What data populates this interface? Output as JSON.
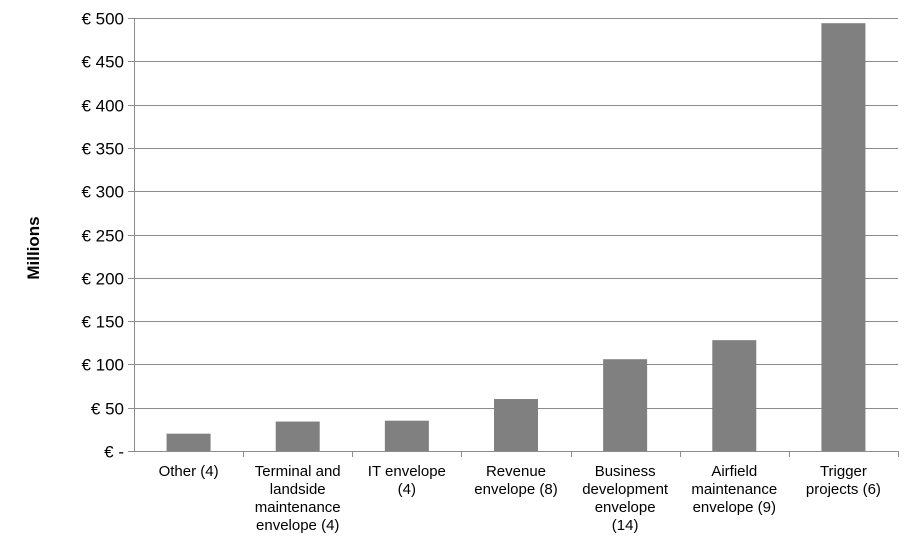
{
  "chart_data": {
    "type": "bar",
    "ylabel": "Millions",
    "ylim": [
      0,
      500
    ],
    "y_step": 50,
    "y_tick_labels": [
      "€ -",
      "€ 50",
      "€ 100",
      "€ 150",
      "€ 200",
      "€ 250",
      "€ 300",
      "€ 350",
      "€ 400",
      "€ 450",
      "€ 500"
    ],
    "categories": [
      [
        "Other (4)"
      ],
      [
        "Terminal and",
        "landside",
        "maintenance",
        "envelope (4)"
      ],
      [
        "IT envelope",
        "(4)"
      ],
      [
        "Revenue",
        "envelope (8)"
      ],
      [
        "Business",
        "development",
        "envelope",
        "(14)"
      ],
      [
        "Airfield",
        "maintenance",
        "envelope (9)"
      ],
      [
        "Trigger",
        "projects (6)"
      ]
    ],
    "values": [
      20,
      34,
      35,
      60,
      106,
      128,
      494
    ],
    "grid": true,
    "legend": "none",
    "colors": {
      "bar": "#808080",
      "grid": "#8c8c8c",
      "axis": "#8c8c8c"
    }
  }
}
